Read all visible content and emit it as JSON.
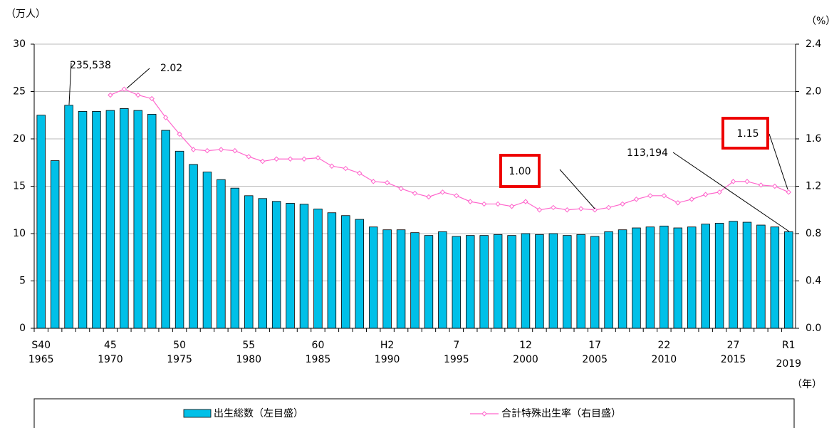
{
  "chart_data": {
    "type": "bar_line",
    "y_unit": "（万人）",
    "y2_unit": "（%）",
    "x_unit": "（年）",
    "categories": [
      "S40",
      null,
      null,
      null,
      null,
      "45",
      null,
      null,
      null,
      null,
      "50",
      null,
      null,
      null,
      null,
      "55",
      null,
      null,
      null,
      null,
      "60",
      null,
      null,
      null,
      null,
      "H2",
      null,
      null,
      null,
      null,
      "7",
      null,
      null,
      null,
      null,
      "12",
      null,
      null,
      null,
      null,
      "17",
      null,
      null,
      null,
      null,
      "22",
      null,
      null,
      null,
      null,
      "27",
      null,
      null,
      null,
      "R1"
    ],
    "years": [
      "1965",
      null,
      null,
      null,
      null,
      "1970",
      null,
      null,
      null,
      null,
      "1975",
      null,
      null,
      null,
      null,
      "1980",
      null,
      null,
      null,
      null,
      "1985",
      null,
      null,
      null,
      null,
      "1990",
      null,
      null,
      null,
      null,
      "1995",
      null,
      null,
      null,
      null,
      "2000",
      null,
      null,
      null,
      null,
      "2005",
      null,
      null,
      null,
      null,
      "2010",
      null,
      null,
      null,
      null,
      "2015",
      null,
      null,
      null,
      "2019"
    ],
    "series": [
      {
        "name": "出生総数（左目盛）",
        "color": "#00c0e8",
        "axis": "y",
        "values": [
          22.5,
          17.7,
          23.55,
          22.9,
          22.9,
          23.0,
          23.2,
          23.0,
          22.6,
          20.9,
          18.7,
          17.3,
          16.5,
          15.7,
          14.8,
          14.0,
          13.7,
          13.4,
          13.2,
          13.1,
          12.6,
          12.2,
          11.9,
          11.5,
          10.7,
          10.4,
          10.4,
          10.1,
          9.8,
          10.2,
          9.7,
          9.8,
          9.8,
          9.9,
          9.8,
          10.0,
          9.9,
          10.0,
          9.8,
          9.9,
          9.7,
          10.2,
          10.4,
          10.6,
          10.7,
          10.8,
          10.6,
          10.7,
          11.0,
          11.1,
          11.3,
          11.2,
          10.9,
          10.7,
          10.2
        ]
      },
      {
        "name": "合計特殊出生率（右目盛）",
        "color": "#ff66cc",
        "axis": "y2",
        "values": [
          null,
          null,
          null,
          null,
          null,
          1.97,
          2.02,
          1.97,
          1.94,
          1.78,
          1.64,
          1.51,
          1.5,
          1.51,
          1.5,
          1.45,
          1.41,
          1.43,
          1.43,
          1.43,
          1.44,
          1.37,
          1.35,
          1.31,
          1.24,
          1.23,
          1.18,
          1.14,
          1.11,
          1.15,
          1.12,
          1.07,
          1.05,
          1.05,
          1.03,
          1.07,
          1.0,
          1.02,
          1.0,
          1.01,
          1.0,
          1.02,
          1.05,
          1.09,
          1.12,
          1.12,
          1.06,
          1.09,
          1.13,
          1.15,
          1.24,
          1.24,
          1.21,
          1.2,
          1.15
        ]
      }
    ],
    "ylim": [
      0,
      30
    ],
    "yticks": [
      0,
      5,
      10,
      15,
      20,
      25,
      30
    ],
    "y2lim": [
      0,
      2.4
    ],
    "y2ticks": [
      {
        "value": 0,
        "label": "0.0"
      },
      0.4,
      0.8,
      1.2,
      1.6,
      {
        "value": 2,
        "label": "2.0"
      },
      2.4
    ],
    "grid": true,
    "annotations": [
      "235,538",
      "2.02",
      "1.00",
      "1.15",
      "113,194"
    ]
  }
}
